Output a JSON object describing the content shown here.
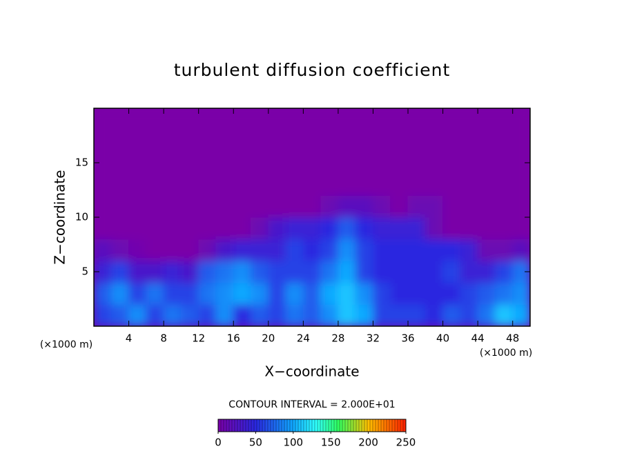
{
  "chart_data": {
    "type": "heatmap",
    "title": "turbulent diffusion coefficient",
    "x_label": "X−coordinate",
    "y_label": "Z−coordinate",
    "x_unit": "(×1000 m)",
    "y_unit": "(×1000 m)",
    "contour_note": "CONTOUR INTERVAL = 2.000E+01",
    "xlim": [
      0,
      50
    ],
    "ylim": [
      0,
      20
    ],
    "xticks": [
      4,
      8,
      12,
      16,
      20,
      24,
      28,
      32,
      36,
      40,
      44,
      48
    ],
    "yticks": [
      5,
      10,
      15
    ],
    "x": [
      1,
      3,
      5,
      7,
      9,
      11,
      13,
      15,
      17,
      19,
      21,
      23,
      25,
      27,
      29,
      31,
      33,
      35,
      37,
      39,
      41,
      43,
      45,
      47,
      49
    ],
    "z": [
      1,
      3,
      5,
      7,
      9,
      11,
      13,
      15,
      17,
      19
    ],
    "values": [
      [
        60,
        70,
        90,
        60,
        80,
        70,
        60,
        90,
        50,
        70,
        60,
        80,
        70,
        90,
        110,
        100,
        60,
        60,
        60,
        50,
        70,
        60,
        80,
        110,
        100
      ],
      [
        70,
        90,
        60,
        80,
        60,
        60,
        80,
        90,
        100,
        90,
        60,
        90,
        70,
        100,
        110,
        90,
        60,
        50,
        50,
        50,
        50,
        60,
        70,
        80,
        90
      ],
      [
        40,
        60,
        30,
        30,
        40,
        30,
        70,
        80,
        90,
        70,
        60,
        60,
        60,
        80,
        100,
        60,
        50,
        50,
        50,
        50,
        60,
        40,
        40,
        60,
        80
      ],
      [
        20,
        10,
        5,
        0,
        0,
        0,
        10,
        30,
        40,
        40,
        40,
        60,
        50,
        60,
        90,
        60,
        50,
        50,
        50,
        50,
        50,
        40,
        10,
        10,
        20
      ],
      [
        0,
        0,
        0,
        0,
        0,
        0,
        0,
        0,
        0,
        10,
        30,
        40,
        40,
        50,
        70,
        50,
        40,
        40,
        40,
        10,
        0,
        0,
        0,
        0,
        0
      ],
      [
        0,
        0,
        0,
        0,
        0,
        0,
        0,
        0,
        0,
        0,
        0,
        0,
        0,
        10,
        20,
        20,
        10,
        0,
        10,
        10,
        0,
        0,
        0,
        0,
        0
      ],
      [
        0,
        0,
        0,
        0,
        0,
        0,
        0,
        0,
        0,
        0,
        0,
        0,
        0,
        0,
        0,
        0,
        0,
        0,
        0,
        0,
        0,
        0,
        0,
        0,
        0
      ],
      [
        0,
        0,
        0,
        0,
        0,
        0,
        0,
        0,
        0,
        0,
        0,
        0,
        0,
        0,
        0,
        0,
        0,
        0,
        0,
        0,
        0,
        0,
        0,
        0,
        0
      ],
      [
        0,
        0,
        0,
        0,
        0,
        0,
        0,
        0,
        0,
        0,
        0,
        0,
        0,
        0,
        0,
        0,
        0,
        0,
        0,
        0,
        0,
        0,
        0,
        0,
        0
      ],
      [
        0,
        0,
        0,
        0,
        0,
        0,
        0,
        0,
        0,
        0,
        0,
        0,
        0,
        0,
        0,
        0,
        0,
        0,
        0,
        0,
        0,
        0,
        0,
        0,
        0
      ]
    ],
    "colorscale": [
      {
        "value": 0,
        "color": "#7a00a8"
      },
      {
        "value": 50,
        "color": "#2a28e0"
      },
      {
        "value": 100,
        "color": "#10a8ff"
      },
      {
        "value": 130,
        "color": "#30ffff"
      },
      {
        "value": 160,
        "color": "#30ff60"
      },
      {
        "value": 200,
        "color": "#ffc000"
      },
      {
        "value": 250,
        "color": "#ff2000"
      }
    ],
    "colorbar": {
      "range": [
        0,
        250
      ],
      "ticks": [
        0,
        50,
        100,
        150,
        200,
        250
      ]
    }
  }
}
